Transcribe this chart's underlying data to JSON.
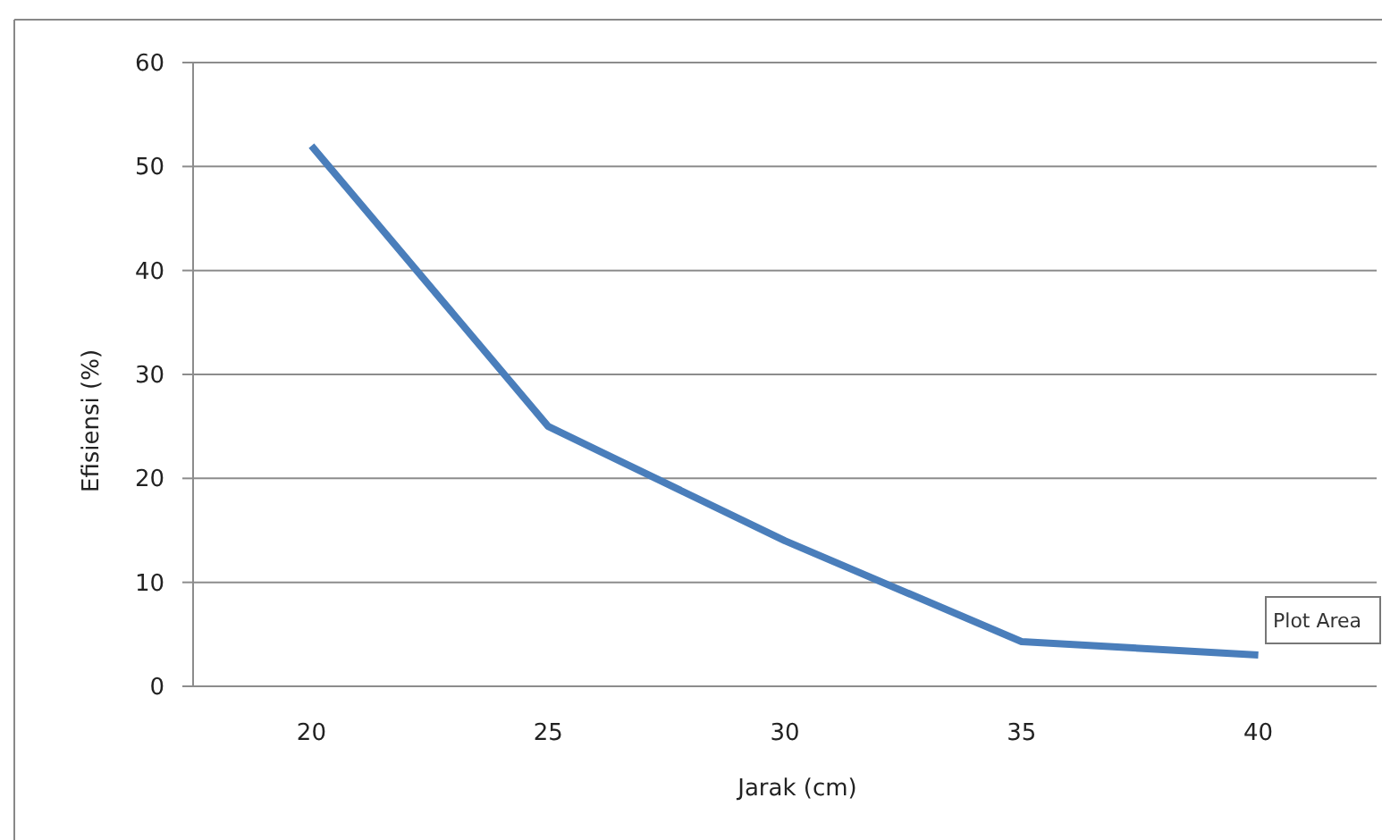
{
  "chart_data": {
    "type": "line",
    "xlabel": "Jarak (cm)",
    "ylabel": "Efisiensi (%)",
    "categories": [
      "20",
      "25",
      "30",
      "35",
      "40"
    ],
    "series": [
      {
        "color": "#4a7ebb",
        "values": [
          52,
          25,
          14,
          4.3,
          3
        ]
      }
    ],
    "ylim": [
      0,
      60
    ],
    "yticks": [
      0,
      10,
      20,
      30,
      40,
      50,
      60
    ],
    "grid": "y",
    "marker": "none",
    "line_style": "solid",
    "annotations": [
      "Plot Area"
    ]
  }
}
